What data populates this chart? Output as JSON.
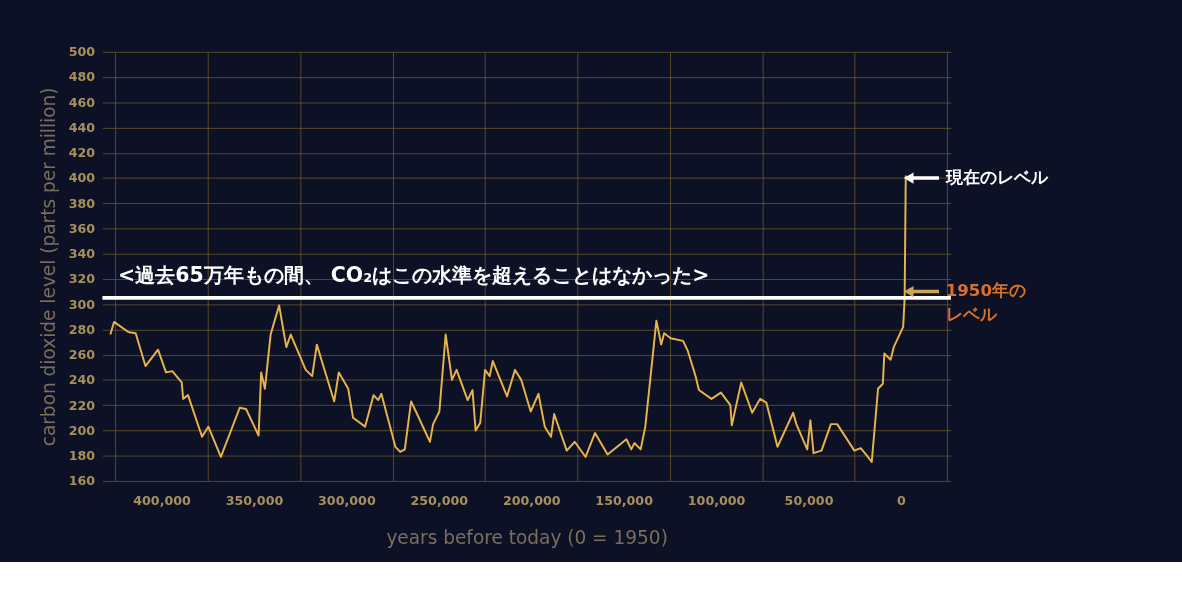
{
  "chart_data": {
    "type": "line",
    "xlabel": "years before today (0 = 1950)",
    "ylabel": "carbon dioxide level (parts per million)",
    "x": [
      427700,
      425700,
      418000,
      414000,
      408700,
      401900,
      397600,
      394200,
      389100,
      388300,
      385700,
      378100,
      374700,
      367900,
      357700,
      354300,
      347500,
      346100,
      344100,
      341000,
      336400,
      332500,
      330100,
      322000,
      318500,
      316000,
      313100,
      306600,
      304100,
      299000,
      296400,
      289900,
      285300,
      282800,
      281100,
      273500,
      270900,
      268400,
      265000,
      262400,
      254800,
      253100,
      249700,
      246300,
      242900,
      240400,
      234400,
      231800,
      230100,
      227600,
      225000,
      222500,
      220800,
      213100,
      208800,
      205400,
      200300,
      196100,
      192700,
      189300,
      187600,
      180800,
      176500,
      170600,
      165500,
      158700,
      148500,
      145900,
      144200,
      140800,
      138300,
      132300,
      129700,
      128100,
      124600,
      117900,
      115300,
      111100,
      109300,
      102500,
      97400,
      92300,
      91500,
      86400,
      80500,
      76200,
      72800,
      66800,
      58300,
      56600,
      50700,
      49000,
      47300,
      43000,
      37900,
      34500,
      25200,
      21800,
      18400,
      15800,
      12400,
      9800,
      9000,
      5600,
      3900,
      -1200,
      -2000,
      -2600
    ],
    "series": [
      {
        "color": "#e8b34a",
        "values": [
          276,
          286,
          278,
          277,
          251,
          264,
          246,
          247,
          238,
          225,
          228,
          195,
          203,
          179,
          218,
          217,
          196,
          246,
          233,
          276,
          299,
          266,
          276,
          248,
          243,
          268,
          254,
          223,
          246,
          233,
          210,
          203,
          228,
          224,
          229,
          187,
          183,
          185,
          223,
          215,
          191,
          205,
          215,
          276,
          240,
          248,
          224,
          232,
          200,
          206,
          248,
          243,
          255,
          227,
          248,
          240,
          215,
          229,
          203,
          195,
          213,
          184,
          191,
          179,
          198,
          181,
          193,
          185,
          190,
          185,
          203,
          287,
          268,
          277,
          273,
          271,
          263,
          243,
          232,
          225,
          230,
          220,
          204,
          238,
          214,
          225,
          222,
          187,
          214,
          205,
          185,
          208,
          182,
          184,
          205,
          205,
          184,
          186,
          180,
          175,
          233,
          237,
          261,
          256,
          266,
          282,
          305,
          402
        ]
      }
    ],
    "xlim": [
      432000,
      -27000
    ],
    "ylim": [
      160,
      500
    ],
    "xticks": [
      {
        "value": 425000,
        "label": null
      },
      {
        "value": 400000,
        "label": "400,000"
      },
      {
        "value": 375000,
        "label": null
      },
      {
        "value": 350000,
        "label": "350,000"
      },
      {
        "value": 325000,
        "label": null
      },
      {
        "value": 300000,
        "label": "300,000"
      },
      {
        "value": 275000,
        "label": null
      },
      {
        "value": 250000,
        "label": "250,000"
      },
      {
        "value": 225000,
        "label": null
      },
      {
        "value": 200000,
        "label": "200,000"
      },
      {
        "value": 175000,
        "label": null
      },
      {
        "value": 150000,
        "label": "150,000"
      },
      {
        "value": 125000,
        "label": null
      },
      {
        "value": 100000,
        "label": "100,000"
      },
      {
        "value": 75000,
        "label": null
      },
      {
        "value": 50000,
        "label": "50,000"
      },
      {
        "value": 25000,
        "label": null
      },
      0,
      {
        "value": -25000,
        "label": null
      }
    ],
    "yticks": [
      160,
      180,
      200,
      220,
      240,
      260,
      280,
      300,
      320,
      340,
      360,
      380,
      400,
      420,
      440,
      460,
      480,
      500
    ],
    "grid": true,
    "ref_lines": [
      {
        "axis": "y",
        "value": 305,
        "label": "<過去65万年もの間、 CO₂はこの水準を超えることはなかった>",
        "color": "#ffffff"
      }
    ],
    "annotations": [
      {
        "text": "現在のレベル",
        "x": 0,
        "y": 400
      },
      {
        "text": "1950年のレベル",
        "x": 0,
        "y": 310
      }
    ]
  }
}
